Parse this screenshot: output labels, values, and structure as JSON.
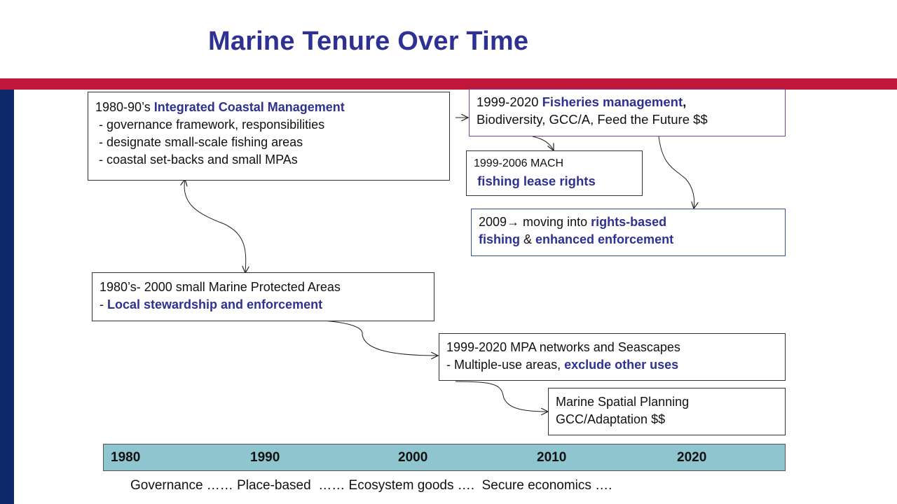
{
  "slide": {
    "title": "Marine Tenure Over Time",
    "colors": {
      "title": "#2e3192",
      "accent_band": "#c0163a",
      "side_band": "#0f2a6b",
      "timeline_fill": "#8ec5cf"
    }
  },
  "boxes": {
    "icm": {
      "line1_a": "1980-90’s ",
      "line1_b": "Integrated Coastal Management",
      "line2": " - governance framework, responsibilities",
      "line3": " - designate small-scale fishing areas",
      "line4": " - coastal set-backs and small MPAs"
    },
    "fisheries": {
      "line1_a": "1999-2020 ",
      "line1_b": "Fisheries management",
      "line1_c": ",",
      "line2": "Biodiversity, GCC/A, Feed the Future $$"
    },
    "mach": {
      "line1": "1999-2006 MACH",
      "line2": " fishing lease rights"
    },
    "rights": {
      "line1_a": "2009→ moving into ",
      "line1_b": "rights-based",
      "line2_a": "fishing",
      "line2_b": " & ",
      "line2_c": "enhanced enforcement"
    },
    "mpa": {
      "line1": "1980’s- 2000 small Marine Protected Areas",
      "line2_a": "- ",
      "line2_b": "Local stewardship and enforcement"
    },
    "networks": {
      "line1": "1999-2020 MPA networks and Seascapes",
      "line2_a": "- Multiple-use areas, ",
      "line2_b": "exclude other uses"
    },
    "msp": {
      "line1": "Marine Spatial Planning",
      "line2": "GCC/Adaptation $$"
    }
  },
  "timeline": {
    "years": [
      "1980",
      "1990",
      "2000",
      "2010",
      "2020"
    ]
  },
  "footer": {
    "text": "Governance …… Place-based  …… Ecosystem goods ….  Secure economics …."
  }
}
